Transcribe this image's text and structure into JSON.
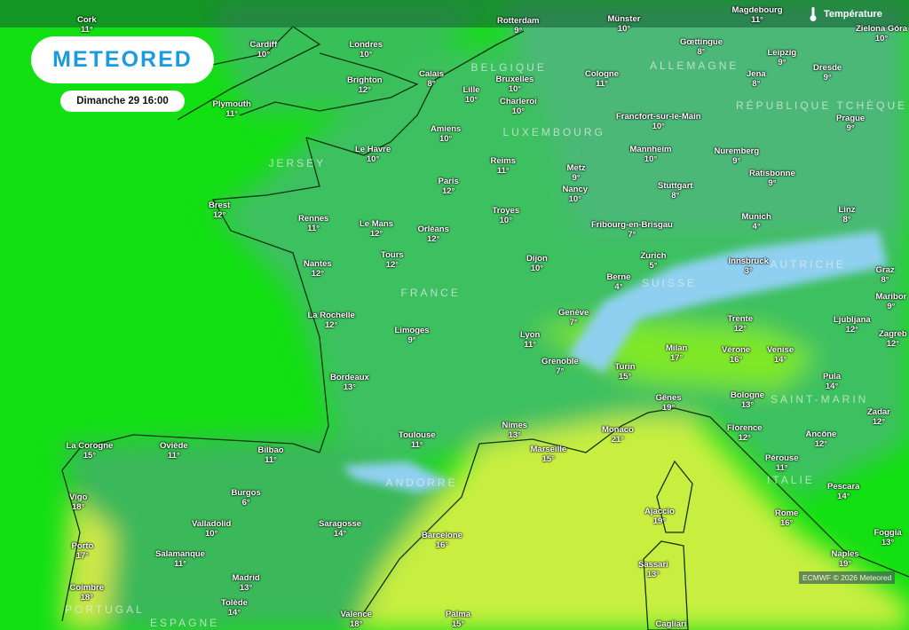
{
  "brand": {
    "logo_text": "METEORED"
  },
  "datetime": "Dimanche 29 16:00",
  "layer": {
    "label": "Température",
    "icon": "thermometer-icon"
  },
  "credit": "ECMWF © 2026 Meteored",
  "colors": {
    "sea": "#12e012",
    "land": "#3fbf5f",
    "warm": "#d8f040",
    "cold": "#8fd8f0",
    "brand": "#1a9be0"
  },
  "countries": [
    "BELGIQUE",
    "ALLEMAGNE",
    "LUXEMBOURG",
    "RÉPUBLIQUE TCHÈQUE",
    "JERSEY",
    "FRANCE",
    "SUISSE",
    "AUTRICHE",
    "SAINT-MARIN",
    "ITALIE",
    "ANDORRE",
    "PORTUGAL",
    "ESPAGNE"
  ],
  "cities": [
    {
      "name": "Cork",
      "temp": "11°"
    },
    {
      "name": "Cardiff",
      "temp": "10°"
    },
    {
      "name": "Londres",
      "temp": "10°"
    },
    {
      "name": "Brighton",
      "temp": "12°"
    },
    {
      "name": "Plymouth",
      "temp": "11°"
    },
    {
      "name": "Calais",
      "temp": "8°"
    },
    {
      "name": "Rotterdam",
      "temp": "9°"
    },
    {
      "name": "Münster",
      "temp": "10°"
    },
    {
      "name": "Magdebourg",
      "temp": "11°"
    },
    {
      "name": "Zielona Góra",
      "temp": "10°"
    },
    {
      "name": "Gœttingue",
      "temp": "8°"
    },
    {
      "name": "Leipzig",
      "temp": "9°"
    },
    {
      "name": "Dresde",
      "temp": "9°"
    },
    {
      "name": "Jena",
      "temp": "8°"
    },
    {
      "name": "Cologne",
      "temp": "11°"
    },
    {
      "name": "Bruxelles",
      "temp": "10°"
    },
    {
      "name": "Lille",
      "temp": "10°"
    },
    {
      "name": "Charleroi",
      "temp": "10°"
    },
    {
      "name": "Amiens",
      "temp": "10°"
    },
    {
      "name": "Le Havre",
      "temp": "10°"
    },
    {
      "name": "Francfort-sur-le-Main",
      "temp": "10°"
    },
    {
      "name": "Prague",
      "temp": "9°"
    },
    {
      "name": "Mannheim",
      "temp": "10°"
    },
    {
      "name": "Nuremberg",
      "temp": "9°"
    },
    {
      "name": "Reims",
      "temp": "11°"
    },
    {
      "name": "Metz",
      "temp": "9°"
    },
    {
      "name": "Ratisbonne",
      "temp": "9°"
    },
    {
      "name": "Paris",
      "temp": "12°"
    },
    {
      "name": "Nancy",
      "temp": "10°"
    },
    {
      "name": "Stuttgart",
      "temp": "8°"
    },
    {
      "name": "Brest",
      "temp": "12°"
    },
    {
      "name": "Rennes",
      "temp": "11°"
    },
    {
      "name": "Le Mans",
      "temp": "12°"
    },
    {
      "name": "Orléans",
      "temp": "12°"
    },
    {
      "name": "Troyes",
      "temp": "10°"
    },
    {
      "name": "Fribourg-en-Brisgau",
      "temp": "7°"
    },
    {
      "name": "Munich",
      "temp": "4°"
    },
    {
      "name": "Linz",
      "temp": "8°"
    },
    {
      "name": "Tours",
      "temp": "12°"
    },
    {
      "name": "Dijon",
      "temp": "10°"
    },
    {
      "name": "Zurich",
      "temp": "5°"
    },
    {
      "name": "Innsbruck",
      "temp": "3°"
    },
    {
      "name": "Graz",
      "temp": "8°"
    },
    {
      "name": "Nantes",
      "temp": "12°"
    },
    {
      "name": "Berne",
      "temp": "4°"
    },
    {
      "name": "Maribor",
      "temp": "9°"
    },
    {
      "name": "Genève",
      "temp": "7°"
    },
    {
      "name": "La Rochelle",
      "temp": "12°"
    },
    {
      "name": "Trente",
      "temp": "12°"
    },
    {
      "name": "Ljubljana",
      "temp": "12°"
    },
    {
      "name": "Lyon",
      "temp": "11°"
    },
    {
      "name": "Limoges",
      "temp": "9°"
    },
    {
      "name": "Zagreb",
      "temp": "12°"
    },
    {
      "name": "Milan",
      "temp": "17°"
    },
    {
      "name": "Vérone",
      "temp": "16°"
    },
    {
      "name": "Venise",
      "temp": "14°"
    },
    {
      "name": "Grenoble",
      "temp": "7°"
    },
    {
      "name": "Turin",
      "temp": "15°"
    },
    {
      "name": "Bordeaux",
      "temp": "13°"
    },
    {
      "name": "Pula",
      "temp": "14°"
    },
    {
      "name": "Gênes",
      "temp": "19°"
    },
    {
      "name": "Bologne",
      "temp": "13°"
    },
    {
      "name": "Zadar",
      "temp": "12°"
    },
    {
      "name": "Nimes",
      "temp": "13°"
    },
    {
      "name": "Monaco",
      "temp": "21°"
    },
    {
      "name": "Florence",
      "temp": "12°"
    },
    {
      "name": "Toulouse",
      "temp": "11°"
    },
    {
      "name": "Marseille",
      "temp": "15°"
    },
    {
      "name": "Ancône",
      "temp": "12°"
    },
    {
      "name": "La Corogne",
      "temp": "15°"
    },
    {
      "name": "Oviède",
      "temp": "11°"
    },
    {
      "name": "Bilbao",
      "temp": "11°"
    },
    {
      "name": "Pérouse",
      "temp": "11°"
    },
    {
      "name": "Pescara",
      "temp": "14°"
    },
    {
      "name": "Burgos",
      "temp": "6°"
    },
    {
      "name": "Vigo",
      "temp": "18°"
    },
    {
      "name": "Ajaccio",
      "temp": "19°"
    },
    {
      "name": "Valladolid",
      "temp": "10°"
    },
    {
      "name": "Saragosse",
      "temp": "14°"
    },
    {
      "name": "Rome",
      "temp": "16°"
    },
    {
      "name": "Barcelone",
      "temp": "16°"
    },
    {
      "name": "Foggia",
      "temp": "13°"
    },
    {
      "name": "Porto",
      "temp": "17°"
    },
    {
      "name": "Salamanque",
      "temp": "11°"
    },
    {
      "name": "Naples",
      "temp": "19°"
    },
    {
      "name": "Sassari",
      "temp": "13°"
    },
    {
      "name": "Madrid",
      "temp": "13°"
    },
    {
      "name": "Coimbre",
      "temp": "18°"
    },
    {
      "name": "Tolède",
      "temp": "14°"
    },
    {
      "name": "Valence",
      "temp": "18°"
    },
    {
      "name": "Palma",
      "temp": "15°"
    },
    {
      "name": "Cagliari",
      "temp": ""
    }
  ]
}
